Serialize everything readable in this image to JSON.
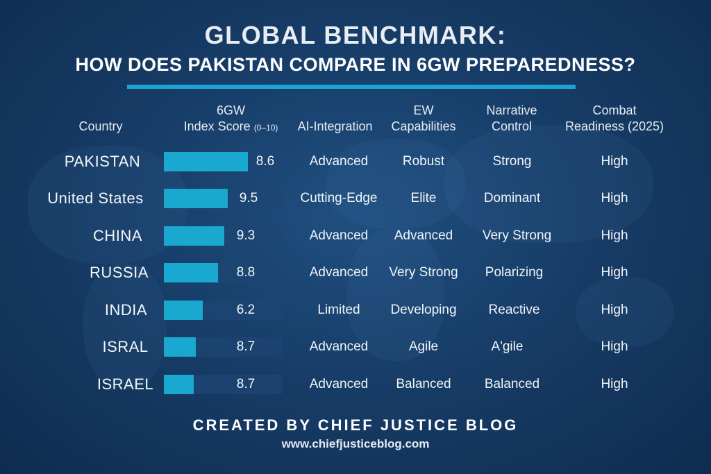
{
  "title_line1": "GLOBAL BENCHMARK:",
  "title_line2": "HOW DOES PAKISTAN COMPARE IN 6GW PREPAREDNESS?",
  "headers": {
    "country": "Country",
    "score_line1": "6GW",
    "score_line2": "Index Score",
    "score_range": "(0–10)",
    "ai": "AI-Integration",
    "ew_line1": "EW",
    "ew_line2": "Capabilities",
    "narrative_line1": "Narrative",
    "narrative_line2": "Control",
    "combat_line1": "Combat",
    "combat_line2": "Readiness (2025)"
  },
  "rows": [
    {
      "country": "PAKISTAN",
      "score": "8.6",
      "ai": "Advanced",
      "ew": "Robust",
      "narrative": "Strong",
      "combat": "High"
    },
    {
      "country": "United States",
      "score": "9.5",
      "ai": "Cutting-Edge",
      "ew": "Elite",
      "narrative": "Dominant",
      "combat": "High"
    },
    {
      "country": "CHINA",
      "score": "9.3",
      "ai": "Advanced",
      "ew": "Advanced",
      "narrative": "Very Strong",
      "combat": "High"
    },
    {
      "country": "RUSSIA",
      "score": "8.8",
      "ai": "Advanced",
      "ew": "Very Strong",
      "narrative": "Polarizing",
      "combat": "High"
    },
    {
      "country": "INDIA",
      "score": "6.2",
      "ai": "Limited",
      "ew": "Developing",
      "narrative": "Reactive",
      "combat": "High"
    },
    {
      "country": "ISRAL",
      "score": "8.7",
      "ai": "Advanced",
      "ew": "Agile",
      "narrative": "A'gile",
      "combat": "High"
    },
    {
      "country": "ISRAEL",
      "score": "8.7",
      "ai": "Advanced",
      "ew": "Balanced",
      "narrative": "Balanced",
      "combat": "High"
    }
  ],
  "chart_data": {
    "type": "table",
    "columns": [
      "Country",
      "6GW Index Score (0–10)",
      "AI-Integration",
      "EW Capabilities",
      "Narrative Control",
      "Combat Readiness (2025)"
    ],
    "categories": [
      "PAKISTAN",
      "United States",
      "CHINA",
      "RUSSIA",
      "INDIA",
      "ISRAL",
      "ISRAEL"
    ],
    "values": [
      8.6,
      9.5,
      9.3,
      8.8,
      6.2,
      8.7,
      8.7
    ],
    "bar_fill_fraction": [
      0.71,
      0.54,
      0.51,
      0.46,
      0.33,
      0.27,
      0.25
    ],
    "colors": {
      "bar": "#19a8cf",
      "track": "#1e4673",
      "rule": "#1ba3d6"
    }
  },
  "footer": {
    "credit": "CREATED BY CHIEF JUSTICE BLOG",
    "url": "www.chiefjusticeblog.com"
  }
}
